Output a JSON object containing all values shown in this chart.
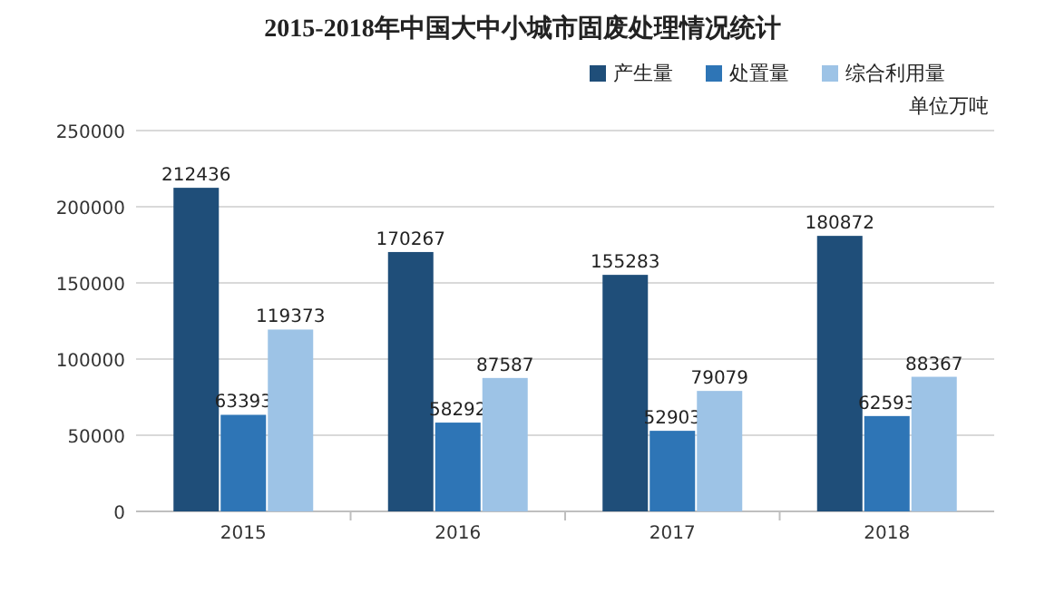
{
  "chart_data": {
    "type": "bar",
    "title": "2015-2018年中国大中小城市固废处理情况统计",
    "categories": [
      "2015",
      "2016",
      "2017",
      "2018"
    ],
    "series": [
      {
        "name": "产生量",
        "color": "#1f4e79",
        "values": [
          212436,
          170267,
          155283,
          180872
        ]
      },
      {
        "name": "处置量",
        "color": "#2e75b6",
        "values": [
          63393,
          58292,
          52903,
          62593
        ]
      },
      {
        "name": "综合利用量",
        "color": "#9dc3e6",
        "values": [
          119373,
          87587,
          79079,
          88367
        ]
      }
    ],
    "ylim": [
      0,
      250000
    ],
    "yticks": [
      0,
      50000,
      100000,
      150000,
      200000,
      250000
    ],
    "grid": "y",
    "legend": "top right",
    "data_labels": true,
    "annotations": [
      "单位万吨"
    ]
  }
}
